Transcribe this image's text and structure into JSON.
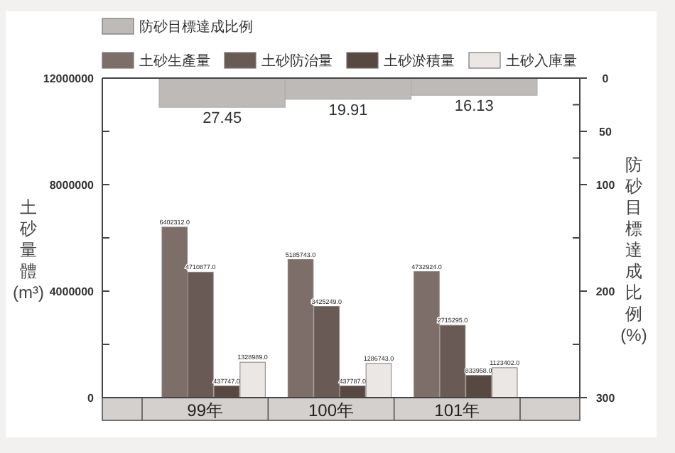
{
  "chart_data": {
    "type": "bar",
    "categories": [
      "99年",
      "100年",
      "101年"
    ],
    "ylabel": "土砂量體(m³)",
    "y2label": "防砂目標達成比例(%)",
    "ylim": [
      0,
      12000000
    ],
    "yticks": [
      0,
      4000000,
      8000000,
      12000000
    ],
    "y2lim": [
      300,
      0
    ],
    "y2ticks": [
      0,
      50,
      100,
      200,
      300
    ],
    "legend": "top left",
    "series": [
      {
        "name": "防砂目標達成比例",
        "color": "#bdbab8",
        "axis": "y2",
        "values": [
          27.45,
          19.91,
          16.13
        ],
        "value_labels": [
          "27.45",
          "19.91",
          "16.13"
        ]
      },
      {
        "name": "土砂生產量",
        "color": "#7d6e69",
        "values": [
          6402312,
          5185743,
          4732924
        ],
        "value_labels": [
          "6402312.0",
          "5185743.0",
          "4732924.0"
        ]
      },
      {
        "name": "土砂防治量",
        "color": "#6a5a55",
        "values": [
          4710877,
          3425249,
          2715295
        ],
        "value_labels": [
          "4710877.0",
          "3425249.0",
          "2715295.0"
        ]
      },
      {
        "name": "土砂淤積量",
        "color": "#574842",
        "values": [
          437747,
          437787,
          833958
        ],
        "value_labels": [
          "437747.0",
          "437787.0",
          "833958.0"
        ]
      },
      {
        "name": "土砂入庫量",
        "color": "#ebe7e4",
        "values": [
          1328989,
          1286743,
          1123402
        ],
        "value_labels": [
          "1328989.0",
          "1286743.0",
          "1123402.0"
        ]
      }
    ]
  }
}
